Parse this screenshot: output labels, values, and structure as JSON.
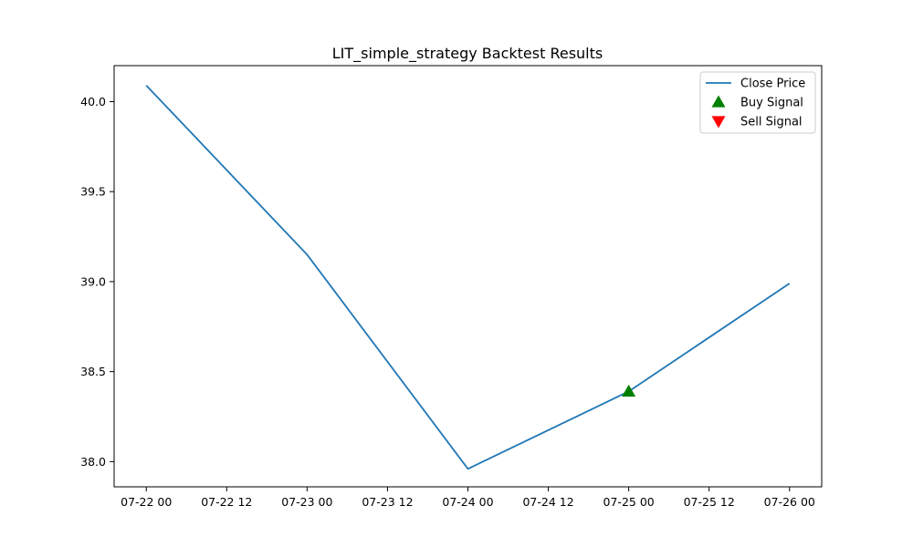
{
  "chart_data": {
    "type": "line",
    "title": "LIT_simple_strategy Backtest Results",
    "xlabel": "",
    "ylabel": "",
    "x_dates": [
      "07-22 00",
      "07-23 00",
      "07-24 00",
      "07-25 00",
      "07-26 00"
    ],
    "x_ticks": [
      {
        "label": "07-22 00",
        "value": 0
      },
      {
        "label": "07-22 12",
        "value": 0.5
      },
      {
        "label": "07-23 00",
        "value": 1
      },
      {
        "label": "07-23 12",
        "value": 1.5
      },
      {
        "label": "07-24 00",
        "value": 2
      },
      {
        "label": "07-24 12",
        "value": 2.5
      },
      {
        "label": "07-25 00",
        "value": 3
      },
      {
        "label": "07-25 12",
        "value": 3.5
      },
      {
        "label": "07-26 00",
        "value": 4
      }
    ],
    "y_ticks": [
      {
        "label": "38.0",
        "value": 38.0
      },
      {
        "label": "38.5",
        "value": 38.5
      },
      {
        "label": "39.0",
        "value": 39.0
      },
      {
        "label": "39.5",
        "value": 39.5
      },
      {
        "label": "40.0",
        "value": 40.0
      }
    ],
    "xlim": [
      -0.2,
      4.2
    ],
    "ylim": [
      37.86,
      40.2
    ],
    "grid": false,
    "legend_position": "top-right",
    "series": [
      {
        "name": "Close Price",
        "kind": "line",
        "color": "#1f77b4",
        "x": [
          0,
          1,
          2,
          3,
          4
        ],
        "y": [
          40.09,
          39.15,
          37.96,
          38.39,
          38.99
        ]
      },
      {
        "name": "Buy Signal",
        "kind": "marker-up",
        "color": "#008000",
        "x": [
          3
        ],
        "y": [
          38.39
        ]
      },
      {
        "name": "Sell Signal",
        "kind": "marker-down",
        "color": "#ff0000",
        "x": [],
        "y": []
      }
    ]
  }
}
